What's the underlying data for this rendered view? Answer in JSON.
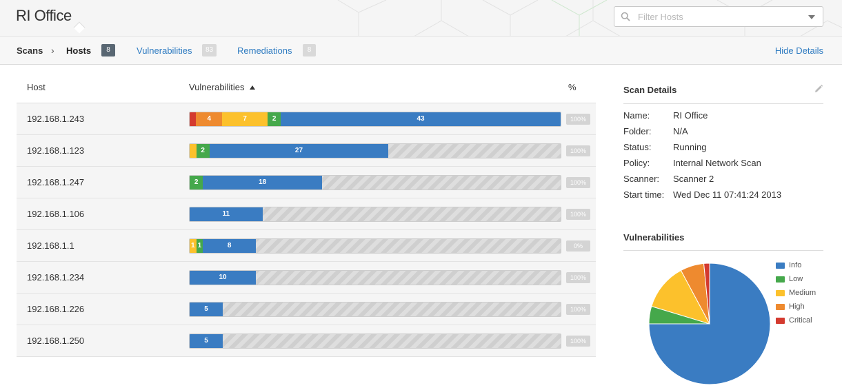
{
  "app": {
    "title": "RI Office"
  },
  "filter": {
    "placeholder": "Filter Hosts"
  },
  "nav": {
    "scans": "Scans",
    "separator": "›",
    "hosts": "Hosts",
    "hosts_count": "8",
    "vulnerabilities": "Vulnerabilities",
    "vulnerabilities_count": "83",
    "remediations": "Remediations",
    "remediations_count": "8",
    "hide_details": "Hide Details"
  },
  "table": {
    "columns": {
      "host": "Host",
      "vulnerabilities": "Vulnerabilities",
      "percent": "%"
    },
    "scale_max": 56,
    "rows": [
      {
        "host": "192.168.1.243",
        "percent": "100%",
        "segments": [
          {
            "severity": "critical",
            "count": 1,
            "label": ""
          },
          {
            "severity": "high",
            "count": 4,
            "label": "4"
          },
          {
            "severity": "medium",
            "count": 7,
            "label": "7"
          },
          {
            "severity": "low",
            "count": 2,
            "label": "2"
          },
          {
            "severity": "info",
            "count": 43,
            "label": "43"
          }
        ]
      },
      {
        "host": "192.168.1.123",
        "percent": "100%",
        "segments": [
          {
            "severity": "medium",
            "count": 1,
            "label": ""
          },
          {
            "severity": "low",
            "count": 2,
            "label": "2"
          },
          {
            "severity": "info",
            "count": 27,
            "label": "27"
          }
        ]
      },
      {
        "host": "192.168.1.247",
        "percent": "100%",
        "segments": [
          {
            "severity": "low",
            "count": 2,
            "label": "2"
          },
          {
            "severity": "info",
            "count": 18,
            "label": "18"
          }
        ]
      },
      {
        "host": "192.168.1.106",
        "percent": "100%",
        "segments": [
          {
            "severity": "info",
            "count": 11,
            "label": "11"
          }
        ]
      },
      {
        "host": "192.168.1.1",
        "percent": "0%",
        "segments": [
          {
            "severity": "medium",
            "count": 1,
            "label": "1"
          },
          {
            "severity": "low",
            "count": 1,
            "label": "1"
          },
          {
            "severity": "info",
            "count": 8,
            "label": "8"
          }
        ]
      },
      {
        "host": "192.168.1.234",
        "percent": "100%",
        "segments": [
          {
            "severity": "info",
            "count": 10,
            "label": "10"
          }
        ]
      },
      {
        "host": "192.168.1.226",
        "percent": "100%",
        "segments": [
          {
            "severity": "info",
            "count": 5,
            "label": "5"
          }
        ]
      },
      {
        "host": "192.168.1.250",
        "percent": "100%",
        "segments": [
          {
            "severity": "info",
            "count": 5,
            "label": "5"
          }
        ]
      }
    ]
  },
  "details": {
    "title": "Scan Details",
    "fields": [
      {
        "key": "Name:",
        "value": "RI Office"
      },
      {
        "key": "Folder:",
        "value": "N/A"
      },
      {
        "key": "Status:",
        "value": "Running"
      },
      {
        "key": "Policy:",
        "value": "Internal Network Scan"
      },
      {
        "key": "Scanner:",
        "value": "Scanner 2"
      },
      {
        "key": "Start time:",
        "value": "Wed Dec 11 07:41:24 2013"
      }
    ]
  },
  "vulnerabilities_panel": {
    "title": "Vulnerabilities"
  },
  "colors": {
    "info": "#3a7cc2",
    "low": "#45a84b",
    "medium": "#fcc12c",
    "high": "#ee8a2f",
    "critical": "#d43a2f",
    "link": "#2e7bc1"
  },
  "chart_data": {
    "type": "pie",
    "legend_position": "right",
    "categories": [
      "Info",
      "Low",
      "Medium",
      "High",
      "Critical"
    ],
    "values": [
      73.8,
      4.6,
      12.3,
      6.2,
      1.5
    ],
    "series": [
      {
        "values": [
          73.8,
          4.6,
          12.3,
          6.2,
          1.5
        ]
      }
    ]
  }
}
